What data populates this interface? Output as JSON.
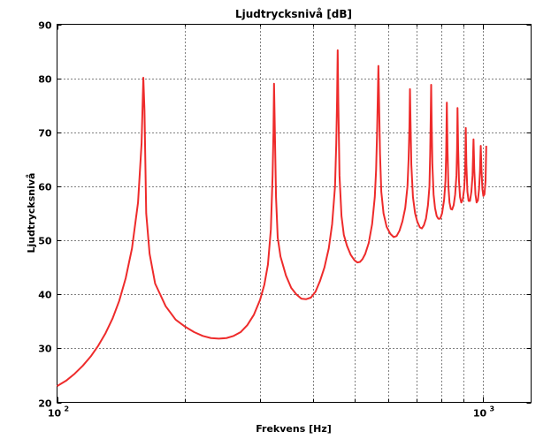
{
  "chart_data": {
    "type": "line",
    "title": "Ljudtrycksnivå [dB]",
    "xlabel": "Frekvens [Hz]",
    "ylabel": "Ljudtrycksnivå",
    "x_scale": "log",
    "xlim": [
      100,
      1300
    ],
    "ylim": [
      20,
      90
    ],
    "x_major_ticks": [
      {
        "value": 100,
        "base": "10",
        "exp": "2"
      },
      {
        "value": 1000,
        "base": "10",
        "exp": "3"
      }
    ],
    "x_minor_gridlines": [
      200,
      300,
      400,
      500,
      600,
      700,
      800,
      900
    ],
    "y_ticks": [
      20,
      30,
      40,
      50,
      60,
      70,
      80,
      90
    ],
    "grid": true,
    "line_color": "#ee2b2b",
    "series": [
      {
        "values": [
          [
            100,
            23
          ],
          [
            105,
            24
          ],
          [
            110,
            25.3
          ],
          [
            115,
            26.8
          ],
          [
            120,
            28.5
          ],
          [
            125,
            30.5
          ],
          [
            130,
            32.8
          ],
          [
            135,
            35.5
          ],
          [
            140,
            38.8
          ],
          [
            145,
            43
          ],
          [
            150,
            48.5
          ],
          [
            155,
            57
          ],
          [
            158,
            68
          ],
          [
            159.5,
            80.1
          ],
          [
            160.5,
            74
          ],
          [
            162,
            55
          ],
          [
            165,
            47.5
          ],
          [
            170,
            42
          ],
          [
            180,
            37.8
          ],
          [
            190,
            35.3
          ],
          [
            200,
            34
          ],
          [
            210,
            33
          ],
          [
            220,
            32.3
          ],
          [
            230,
            31.9
          ],
          [
            240,
            31.8
          ],
          [
            250,
            31.9
          ],
          [
            260,
            32.3
          ],
          [
            270,
            33
          ],
          [
            280,
            34.3
          ],
          [
            290,
            36.2
          ],
          [
            300,
            39
          ],
          [
            307,
            41.8
          ],
          [
            313,
            45.5
          ],
          [
            318,
            52
          ],
          [
            321,
            62
          ],
          [
            322.5,
            70
          ],
          [
            323.5,
            79
          ],
          [
            325,
            70
          ],
          [
            327,
            58
          ],
          [
            330,
            50.5
          ],
          [
            335,
            47
          ],
          [
            345,
            43.5
          ],
          [
            355,
            41.2
          ],
          [
            365,
            40
          ],
          [
            375,
            39.2
          ],
          [
            385,
            39.1
          ],
          [
            395,
            39.4
          ],
          [
            405,
            40.5
          ],
          [
            415,
            42.5
          ],
          [
            425,
            45
          ],
          [
            435,
            48.5
          ],
          [
            443,
            53
          ],
          [
            450,
            60
          ],
          [
            453,
            68
          ],
          [
            455,
            76
          ],
          [
            456.5,
            85.2
          ],
          [
            458,
            76
          ],
          [
            461,
            62
          ],
          [
            466,
            54.5
          ],
          [
            472,
            51
          ],
          [
            480,
            49
          ],
          [
            490,
            47.3
          ],
          [
            500,
            46.3
          ],
          [
            508,
            45.9
          ],
          [
            515,
            46
          ],
          [
            522,
            46.5
          ],
          [
            530,
            47.5
          ],
          [
            540,
            49.5
          ],
          [
            550,
            53
          ],
          [
            558,
            58
          ],
          [
            562,
            63
          ],
          [
            565,
            70
          ],
          [
            567,
            76
          ],
          [
            569,
            82.3
          ],
          [
            571,
            76
          ],
          [
            574,
            66
          ],
          [
            578,
            59
          ],
          [
            585,
            55
          ],
          [
            595,
            52.5
          ],
          [
            607,
            51.2
          ],
          [
            618,
            50.6
          ],
          [
            628,
            50.8
          ],
          [
            638,
            51.8
          ],
          [
            648,
            53.5
          ],
          [
            658,
            56
          ],
          [
            666,
            60
          ],
          [
            670,
            65
          ],
          [
            673,
            71
          ],
          [
            675,
            78
          ],
          [
            677,
            72
          ],
          [
            680,
            64
          ],
          [
            686,
            58
          ],
          [
            694,
            55
          ],
          [
            702,
            53.5
          ],
          [
            712,
            52.4
          ],
          [
            720,
            52.2
          ],
          [
            728,
            52.8
          ],
          [
            736,
            54
          ],
          [
            744,
            56.5
          ],
          [
            750,
            60
          ],
          [
            753,
            66
          ],
          [
            755,
            72
          ],
          [
            757,
            78.8
          ],
          [
            759,
            72
          ],
          [
            762,
            64
          ],
          [
            767,
            58.5
          ],
          [
            773,
            56
          ],
          [
            780,
            54.5
          ],
          [
            787,
            54
          ],
          [
            795,
            54
          ],
          [
            803,
            55
          ],
          [
            812,
            57.5
          ],
          [
            818,
            61
          ],
          [
            821,
            66
          ],
          [
            824,
            75.5
          ],
          [
            827,
            67
          ],
          [
            831,
            60
          ],
          [
            836,
            57
          ],
          [
            842,
            55.8
          ],
          [
            848,
            55.7
          ],
          [
            855,
            56.5
          ],
          [
            862,
            58.5
          ],
          [
            868,
            62
          ],
          [
            871,
            67
          ],
          [
            873,
            74.5
          ],
          [
            876,
            67
          ],
          [
            880,
            61
          ],
          [
            885,
            58
          ],
          [
            891,
            57
          ],
          [
            898,
            57.5
          ],
          [
            905,
            59.5
          ],
          [
            910,
            63
          ],
          [
            913,
            70.8
          ],
          [
            916,
            64
          ],
          [
            921,
            59
          ],
          [
            927,
            57.3
          ],
          [
            934,
            57.3
          ],
          [
            941,
            59
          ],
          [
            947,
            62
          ],
          [
            952,
            68.7
          ],
          [
            956,
            63
          ],
          [
            962,
            58.5
          ],
          [
            968,
            57
          ],
          [
            975,
            57.4
          ],
          [
            981,
            59.5
          ],
          [
            986,
            63
          ],
          [
            990,
            67.5
          ],
          [
            994,
            63
          ],
          [
            999,
            59.5
          ],
          [
            1004,
            58.2
          ],
          [
            1010,
            58.5
          ],
          [
            1016,
            61
          ],
          [
            1020,
            67.5
          ]
        ]
      }
    ]
  }
}
